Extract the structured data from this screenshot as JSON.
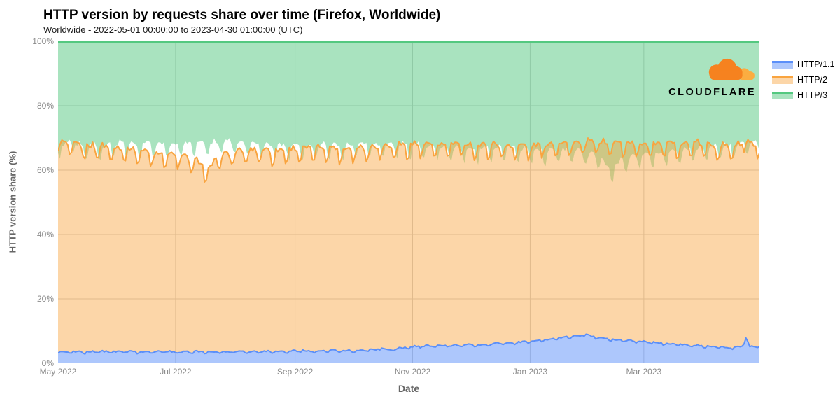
{
  "page": {
    "title": "HTTP version by requests share over time (Firefox, Worldwide)",
    "subtitle": "Worldwide - 2022-05-01 00:00:00 to 2023-04-30 01:00:00 (UTC)"
  },
  "branding": {
    "logo_text": "CLOUDFLARE",
    "cloud_primary": "#F6821F",
    "cloud_secondary": "#FBAD41"
  },
  "colors": {
    "background": "#ffffff",
    "grid": "#cccccc",
    "axis_title": "#666666",
    "tick_label": "#8a8a8a"
  },
  "chart_data": {
    "type": "area",
    "stacking": "percent",
    "title": "HTTP version by requests share over time (Firefox, Worldwide)",
    "subtitle": "Worldwide - 2022-05-01 00:00:00 to 2023-04-30 01:00:00 (UTC)",
    "xlabel": "Date",
    "ylabel": "HTTP version share (%)",
    "ylim": [
      0,
      100
    ],
    "grid": true,
    "legend_position": "right",
    "x_start_date": "2022-05-01",
    "x_end_date": "2023-04-30",
    "days_total": 365,
    "start_day_of_week": 0,
    "x_tick_labels": [
      "May 2022",
      "Jul 2022",
      "Sep 2022",
      "Nov 2022",
      "Jan 2023",
      "Mar 2023"
    ],
    "x_tick_day_index": [
      0,
      61,
      123,
      184,
      245,
      304
    ],
    "y_tick_labels": [
      "0%",
      "20%",
      "40%",
      "60%",
      "80%",
      "100%"
    ],
    "y_tick_values": [
      0,
      20,
      40,
      60,
      80,
      100
    ],
    "anchor_days": [
      0,
      7,
      14,
      21,
      28,
      35,
      42,
      49,
      56,
      63,
      70,
      77,
      84,
      91,
      98,
      105,
      112,
      119,
      126,
      133,
      140,
      147,
      154,
      161,
      168,
      175,
      182,
      189,
      196,
      203,
      210,
      217,
      224,
      231,
      238,
      245,
      252,
      259,
      266,
      273,
      280,
      287,
      294,
      301,
      308,
      315,
      322,
      329,
      336,
      343,
      350,
      357,
      364
    ],
    "series": [
      {
        "name": "HTTP/1.1",
        "line_color": "#5B8FF9",
        "fill_opacity": 0.5,
        "anchor_values": [
          3.3,
          3.5,
          3.4,
          3.6,
          3.4,
          3.5,
          3.4,
          3.5,
          3.6,
          3.4,
          3.5,
          3.6,
          3.5,
          3.6,
          3.5,
          3.6,
          3.7,
          3.6,
          3.8,
          3.7,
          3.8,
          3.9,
          3.8,
          4.0,
          4.2,
          4.3,
          5.0,
          5.3,
          5.2,
          5.4,
          5.5,
          5.6,
          5.8,
          6.2,
          6.3,
          6.8,
          7.2,
          7.6,
          8.3,
          8.8,
          8.0,
          7.4,
          7.0,
          6.8,
          6.5,
          6.0,
          5.8,
          5.6,
          5.3,
          5.0,
          4.8,
          5.0,
          5.2
        ],
        "weekly_pattern": [
          -0.3,
          0.15,
          0.2,
          0.2,
          0.15,
          0.05,
          -0.35
        ],
        "jitter": 0.25,
        "events": [
          {
            "day": 168,
            "amount": 0.9,
            "width": 0.8
          },
          {
            "day": 357,
            "amount": 3.0,
            "width": 0.8
          }
        ]
      },
      {
        "name": "HTTP/2",
        "line_color": "#F9A43F",
        "fill_opacity": 0.45,
        "anchor_values": [
          64.2,
          63.5,
          63.1,
          62.9,
          62.6,
          62.0,
          61.6,
          61.0,
          60.4,
          60.1,
          58.5,
          57.9,
          60.0,
          60.9,
          61.5,
          61.9,
          61.3,
          61.9,
          61.7,
          62.3,
          62.2,
          61.6,
          62.2,
          62.0,
          62.3,
          62.2,
          62.0,
          61.7,
          61.3,
          61.6,
          61.5,
          60.9,
          61.2,
          60.3,
          60.2,
          59.7,
          59.8,
          59.9,
          59.2,
          58.7,
          60.0,
          60.1,
          60.5,
          60.2,
          61.0,
          61.0,
          61.2,
          61.9,
          61.7,
          61.5,
          61.7,
          62.0,
          61.3
        ],
        "weekly_pattern": [
          -1.8,
          0.9,
          1.2,
          1.2,
          1.1,
          0.6,
          -2.6
        ],
        "jitter": 0.8,
        "events": [
          {
            "day": 78,
            "amount": -2.8,
            "width": 2.0
          }
        ]
      },
      {
        "name": "HTTP/3",
        "line_color": "#54C880",
        "fill_opacity": 0.5,
        "fills_to": 100,
        "anchor_values": [
          32.5,
          33.0,
          33.5,
          33.5,
          34.0,
          34.5,
          35.0,
          35.5,
          36.0,
          36.5,
          38.0,
          38.5,
          36.5,
          35.5,
          35.0,
          34.5,
          35.0,
          34.5,
          34.5,
          34.0,
          34.0,
          34.5,
          34.0,
          34.0,
          33.5,
          33.5,
          33.0,
          33.0,
          33.5,
          33.0,
          33.0,
          33.5,
          33.0,
          33.5,
          33.5,
          33.5,
          33.0,
          32.5,
          32.5,
          32.5,
          32.0,
          32.5,
          32.5,
          33.0,
          32.5,
          33.0,
          33.0,
          32.5,
          33.0,
          33.5,
          33.5,
          33.0,
          33.5
        ],
        "weekly_pattern": [
          0,
          0,
          0,
          0,
          0,
          0,
          0
        ],
        "jitter": 0,
        "events": []
      }
    ]
  }
}
